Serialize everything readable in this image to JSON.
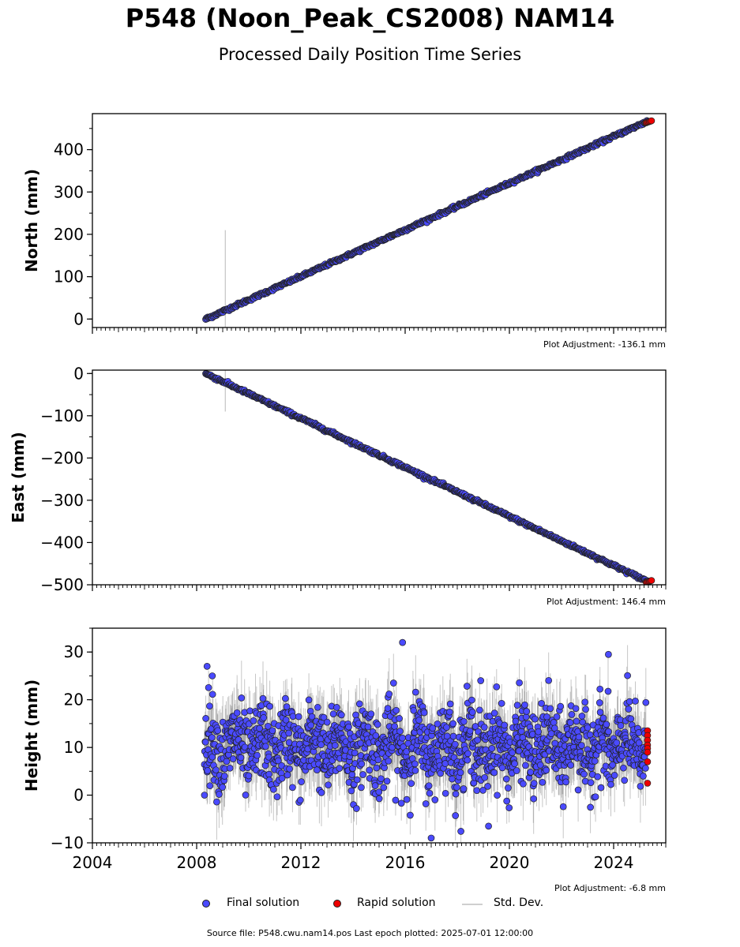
{
  "figure": {
    "title": "P548 (Noon_Peak_CS2008) NAM14",
    "subtitle": "Processed Daily Position Time Series",
    "footer": "Source file: P548.cwu.nam14.pos  Last epoch plotted: 2025-07-01 12:00:00"
  },
  "legend": {
    "final": "Final solution",
    "rapid": "Rapid solution",
    "std": "Std. Dev."
  },
  "colors": {
    "final": "#4a4aff",
    "rapid": "#ee0000",
    "std": "#c8c8c8",
    "edge": "#222222"
  },
  "chart_data": [
    {
      "type": "scatter",
      "panel": "north",
      "ylabel": "North (mm)",
      "adjustment": "Plot Adjustment: -136.1 mm",
      "xlim": [
        2004,
        2026
      ],
      "ylim": [
        -20,
        485
      ],
      "yticks": [
        0,
        100,
        200,
        300,
        400
      ],
      "tick_labels": [
        "0",
        "100",
        "200",
        "300",
        "400"
      ],
      "trend": {
        "x": [
          2008.35,
          2025.3
        ],
        "y": [
          0,
          467
        ]
      },
      "rapid_range": {
        "x": [
          2025.25,
          2025.45
        ],
        "y": [
          464,
          468
        ]
      },
      "outliers": [
        {
          "x": 2009.1,
          "y": 20,
          "err": 190
        }
      ]
    },
    {
      "type": "scatter",
      "panel": "east",
      "ylabel": "East (mm)",
      "adjustment": "Plot Adjustment: 146.4 mm",
      "xlim": [
        2004,
        2026
      ],
      "ylim": [
        -500,
        8
      ],
      "yticks": [
        0,
        -100,
        -200,
        -300,
        -400,
        -500
      ],
      "tick_labels": [
        "0",
        "−100",
        "−200",
        "−300",
        "−400",
        "−500"
      ],
      "trend": {
        "x": [
          2008.35,
          2025.3
        ],
        "y": [
          0,
          -492
        ]
      },
      "rapid_range": {
        "x": [
          2025.25,
          2025.45
        ],
        "y": [
          -494,
          -490
        ]
      },
      "outliers": [
        {
          "x": 2009.1,
          "y": -25,
          "err": 65
        }
      ]
    },
    {
      "type": "scatter",
      "panel": "height",
      "ylabel": "Height (mm)",
      "adjustment": "Plot Adjustment: -6.8 mm",
      "xlim": [
        2004,
        2026
      ],
      "ylim": [
        -10,
        35
      ],
      "yticks": [
        -10,
        0,
        10,
        20,
        30
      ],
      "tick_labels": [
        "−10",
        "0",
        "10",
        "20",
        "30"
      ],
      "xticks": [
        2004,
        2008,
        2012,
        2016,
        2020,
        2024
      ],
      "xtick_labels": [
        "2004",
        "2008",
        "2012",
        "2016",
        "2020",
        "2024"
      ],
      "mean": 10,
      "scatter_sd": 5,
      "start": 2008.3,
      "end": 2025.25,
      "rapid_points": [
        {
          "x": 2025.3,
          "y": 13.5
        },
        {
          "x": 2025.3,
          "y": 12.5
        },
        {
          "x": 2025.3,
          "y": 11.5
        },
        {
          "x": 2025.3,
          "y": 10.5
        },
        {
          "x": 2025.3,
          "y": 9.8
        },
        {
          "x": 2025.3,
          "y": 9
        },
        {
          "x": 2025.3,
          "y": 7
        },
        {
          "x": 2025.3,
          "y": 2.5
        }
      ],
      "notable_points": [
        {
          "x": 2008.4,
          "y": 27
        },
        {
          "x": 2008.6,
          "y": 25
        },
        {
          "x": 2015.9,
          "y": 32
        },
        {
          "x": 2023.8,
          "y": 29.5
        },
        {
          "x": 2017.0,
          "y": -9
        },
        {
          "x": 2019.2,
          "y": -6.5
        },
        {
          "x": 2018.9,
          "y": 24
        },
        {
          "x": 2008.3,
          "y": 0
        }
      ]
    }
  ]
}
